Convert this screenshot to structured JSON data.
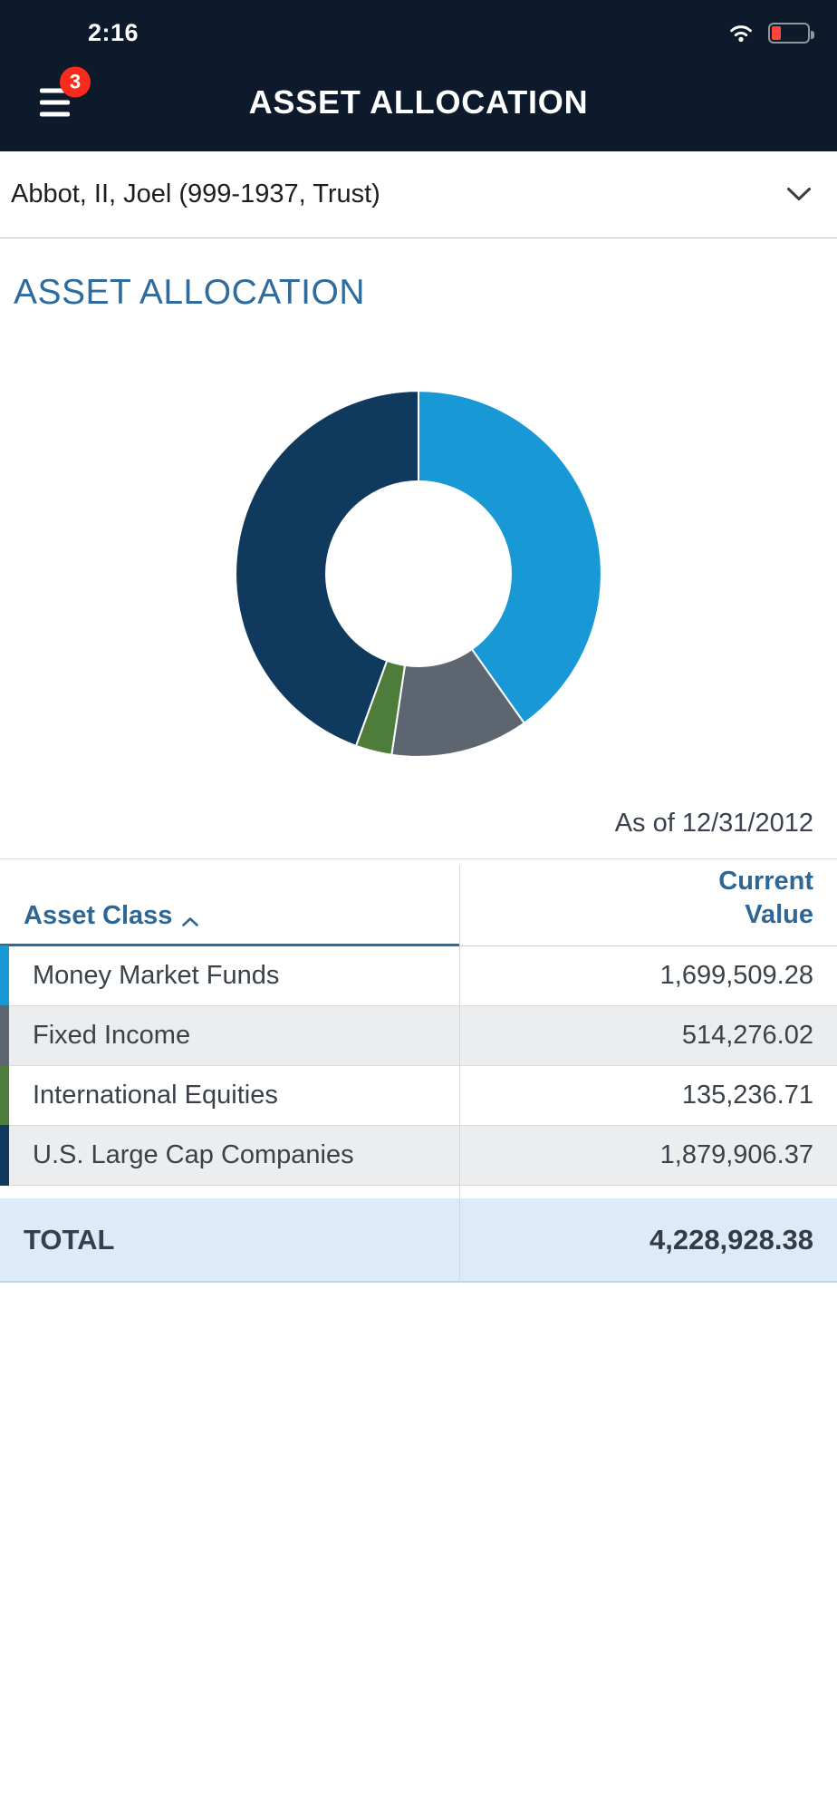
{
  "status_bar": {
    "time": "2:16"
  },
  "header": {
    "title": "ASSET ALLOCATION",
    "badge_count": "3"
  },
  "account_selector": {
    "label": "Abbot, II, Joel (999-1937, Trust)"
  },
  "page": {
    "section_title": "ASSET ALLOCATION",
    "as_of": "As of 12/31/2012"
  },
  "chart_data": {
    "type": "pie",
    "donut": true,
    "title": "Asset Allocation",
    "categories": [
      "Money Market Funds",
      "Fixed Income",
      "International Equities",
      "U.S. Large Cap Companies"
    ],
    "values": [
      1699509.28,
      514276.02,
      135236.71,
      1879906.37
    ],
    "colors": [
      "#1899d5",
      "#5d6670",
      "#4d7c3b",
      "#0f3a5e"
    ],
    "total": 4228928.38,
    "start_angle_deg": 0,
    "direction": "clockwise",
    "as_of": "12/31/2012",
    "legend_position": "table-below"
  },
  "table": {
    "headers": {
      "asset_class": "Asset Class",
      "current_value": "Current Value"
    },
    "rows": [
      {
        "label": "Money Market Funds",
        "value": "1,699,509.28"
      },
      {
        "label": "Fixed Income",
        "value": "514,276.02"
      },
      {
        "label": "International Equities",
        "value": "135,236.71"
      },
      {
        "label": "U.S. Large Cap Companies",
        "value": "1,879,906.37"
      }
    ],
    "total": {
      "label": "TOTAL",
      "value": "4,228,928.38"
    }
  }
}
